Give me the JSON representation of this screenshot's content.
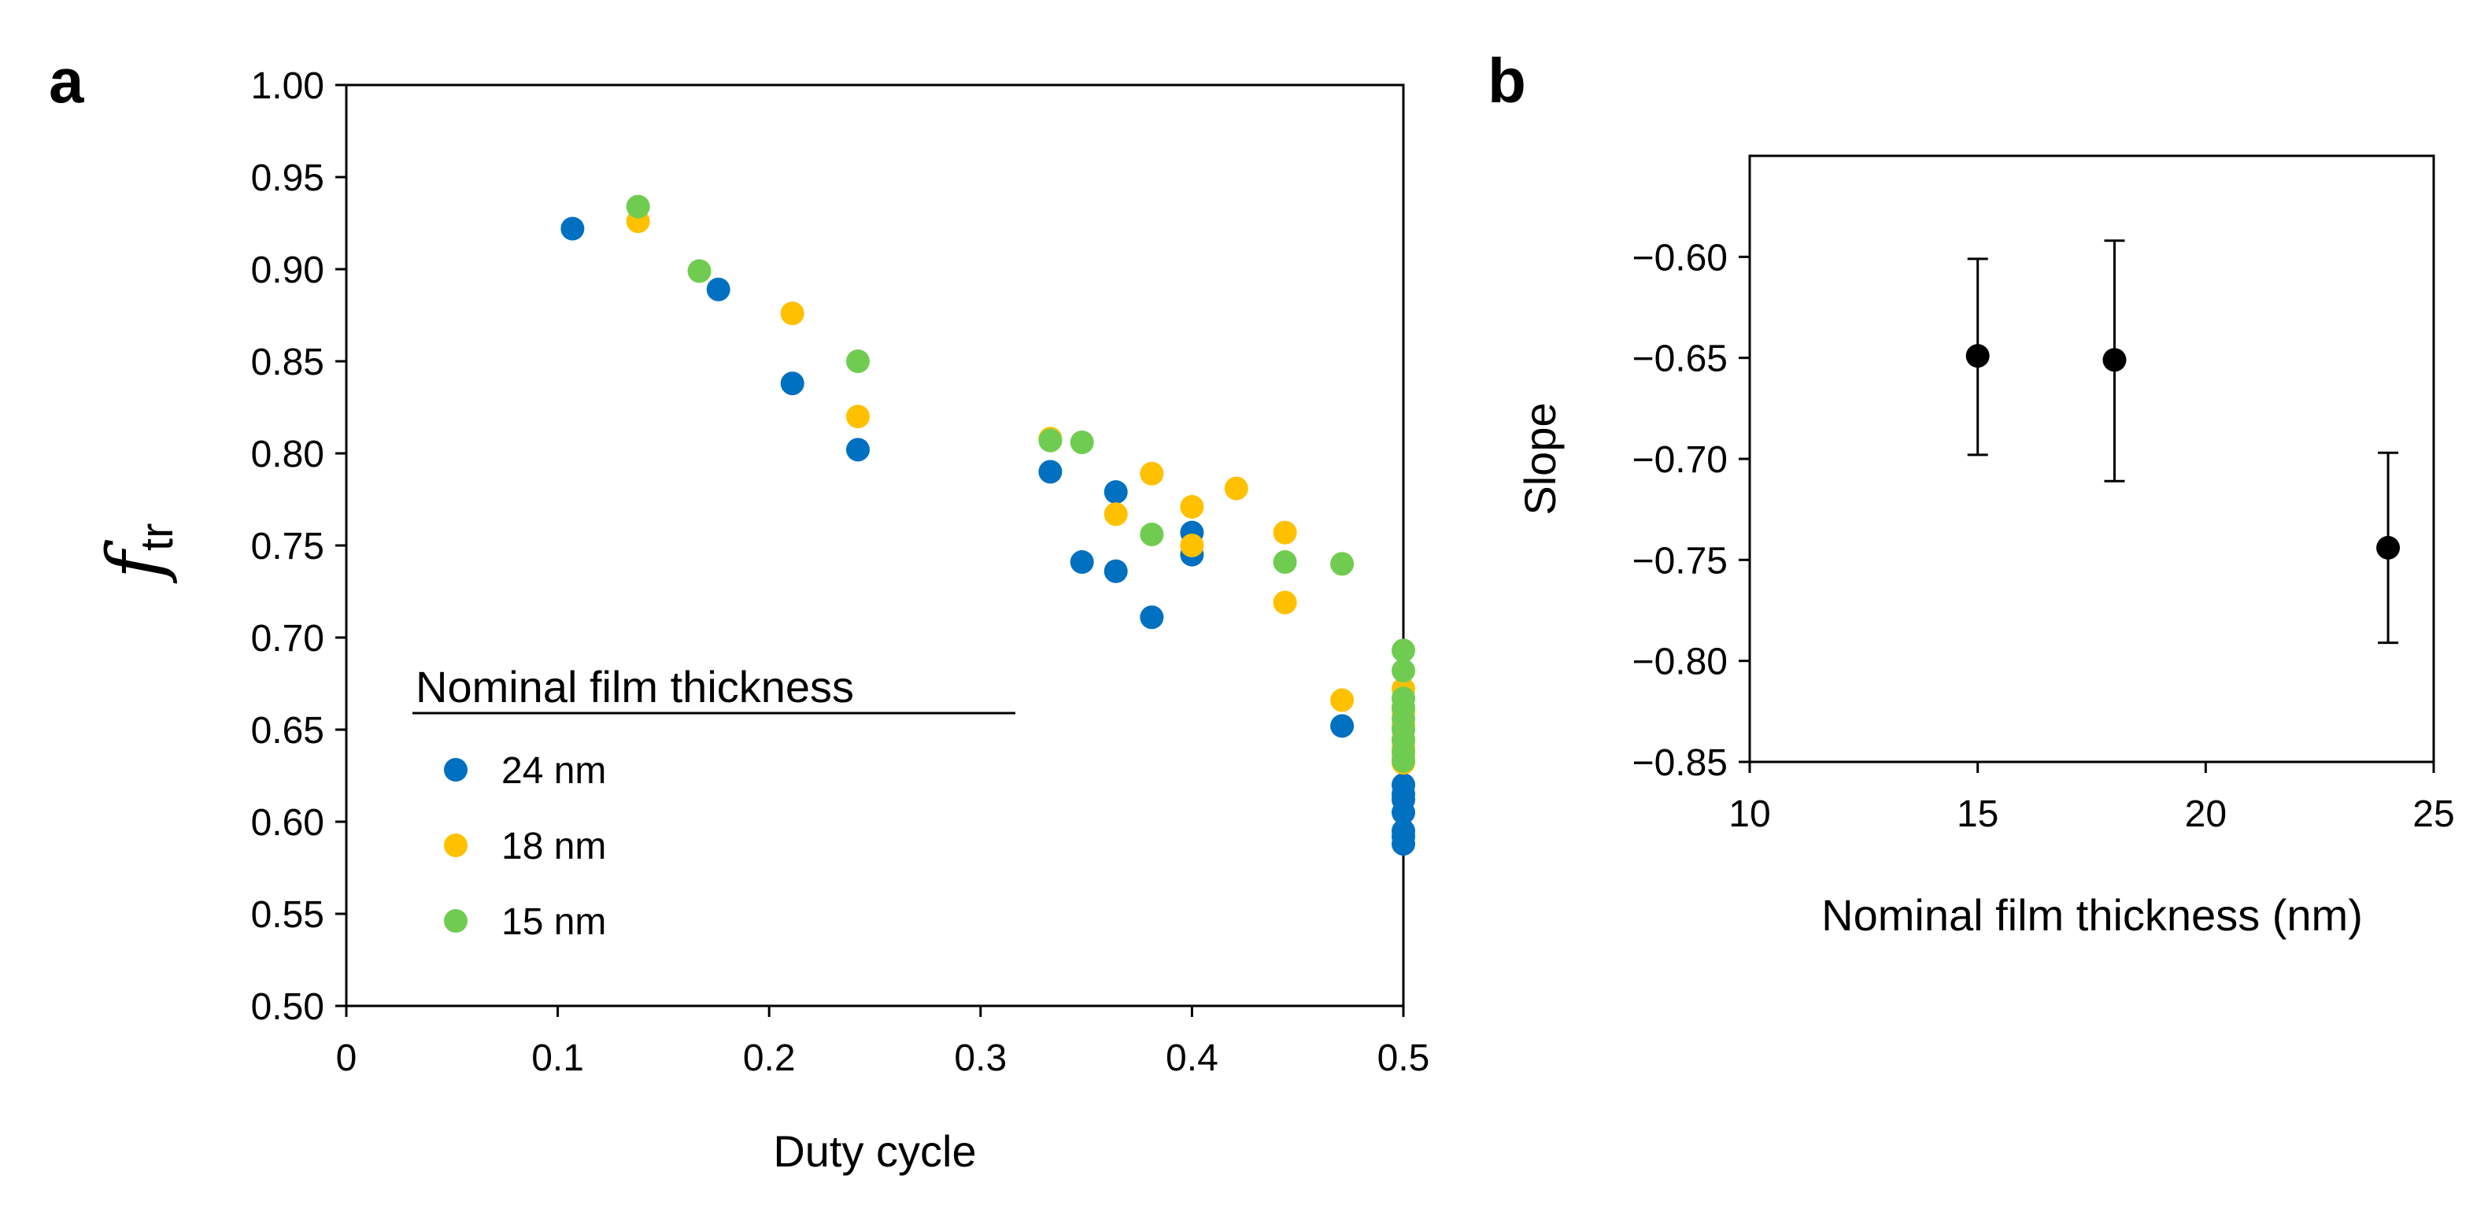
{
  "panels": {
    "a": "a",
    "b": "b"
  },
  "colors": {
    "24 nm": "#0070C0",
    "18 nm": "#FFC000",
    "15 nm": "#70CC50",
    "black": "#000000"
  },
  "chart_data": [
    {
      "type": "scatter",
      "panel": "a",
      "xlabel": "Duty cycle",
      "ylabel": "f",
      "ylabel_subscript": "tr",
      "xlim": [
        0,
        0.5
      ],
      "ylim": [
        0.5,
        1.0
      ],
      "xticks": [
        "0",
        "0.1",
        "0.2",
        "0.3",
        "0.4",
        "0.5"
      ],
      "yticks": [
        "0.50",
        "0.55",
        "0.60",
        "0.65",
        "0.70",
        "0.75",
        "0.80",
        "0.85",
        "0.90",
        "0.95",
        "1.00"
      ],
      "grid": false,
      "legend_title": "Nominal film thickness",
      "legend_position": "lower-left",
      "series": [
        {
          "name": "24 nm",
          "color": "#0070C0",
          "points": [
            [
              0.107,
              0.922
            ],
            [
              0.176,
              0.889
            ],
            [
              0.211,
              0.838
            ],
            [
              0.242,
              0.802
            ],
            [
              0.333,
              0.79
            ],
            [
              0.348,
              0.741
            ],
            [
              0.364,
              0.779
            ],
            [
              0.364,
              0.736
            ],
            [
              0.381,
              0.711
            ],
            [
              0.4,
              0.757
            ],
            [
              0.4,
              0.745
            ],
            [
              0.471,
              0.652
            ],
            [
              0.5,
              0.62
            ],
            [
              0.5,
              0.615
            ],
            [
              0.5,
              0.612
            ],
            [
              0.5,
              0.605
            ],
            [
              0.5,
              0.595
            ],
            [
              0.5,
              0.592
            ],
            [
              0.5,
              0.588
            ]
          ]
        },
        {
          "name": "18 nm",
          "color": "#FFC000",
          "points": [
            [
              0.138,
              0.926
            ],
            [
              0.211,
              0.876
            ],
            [
              0.242,
              0.82
            ],
            [
              0.333,
              0.808
            ],
            [
              0.364,
              0.767
            ],
            [
              0.381,
              0.789
            ],
            [
              0.4,
              0.771
            ],
            [
              0.4,
              0.75
            ],
            [
              0.421,
              0.781
            ],
            [
              0.444,
              0.757
            ],
            [
              0.444,
              0.719
            ],
            [
              0.471,
              0.666
            ],
            [
              0.5,
              0.672
            ],
            [
              0.5,
              0.66
            ],
            [
              0.5,
              0.652
            ],
            [
              0.5,
              0.645
            ],
            [
              0.5,
              0.64
            ],
            [
              0.5,
              0.635
            ],
            [
              0.5,
              0.632
            ]
          ]
        },
        {
          "name": "15 nm",
          "color": "#70CC50",
          "points": [
            [
              0.138,
              0.934
            ],
            [
              0.167,
              0.899
            ],
            [
              0.242,
              0.85
            ],
            [
              0.333,
              0.807
            ],
            [
              0.348,
              0.806
            ],
            [
              0.381,
              0.756
            ],
            [
              0.444,
              0.741
            ],
            [
              0.471,
              0.74
            ],
            [
              0.5,
              0.693
            ],
            [
              0.5,
              0.682
            ],
            [
              0.5,
              0.667
            ],
            [
              0.5,
              0.662
            ],
            [
              0.5,
              0.656
            ],
            [
              0.5,
              0.65
            ],
            [
              0.5,
              0.644
            ],
            [
              0.5,
              0.638
            ],
            [
              0.5,
              0.633
            ]
          ]
        }
      ]
    },
    {
      "type": "scatter",
      "panel": "b",
      "xlabel": "Nominal film thickness (nm)",
      "ylabel": "Slope",
      "xlim": [
        10,
        25
      ],
      "ylim": [
        -0.85,
        -0.55
      ],
      "xticks": [
        "10",
        "15",
        "20",
        "25"
      ],
      "yticks": [
        "−0.85",
        "−0.80",
        "−0.75",
        "−0.70",
        "−0.65",
        "−0.60"
      ],
      "ytick_values": [
        -0.85,
        -0.8,
        -0.75,
        -0.7,
        -0.65,
        -0.6
      ],
      "grid": false,
      "series": [
        {
          "color": "#000000",
          "points": [
            {
              "x": 15,
              "y": -0.649,
              "err_low": -0.698,
              "err_high": -0.601
            },
            {
              "x": 18,
              "y": -0.651,
              "err_low": -0.711,
              "err_high": -0.592
            },
            {
              "x": 24,
              "y": -0.744,
              "err_low": -0.791,
              "err_high": -0.697
            }
          ]
        }
      ]
    }
  ]
}
